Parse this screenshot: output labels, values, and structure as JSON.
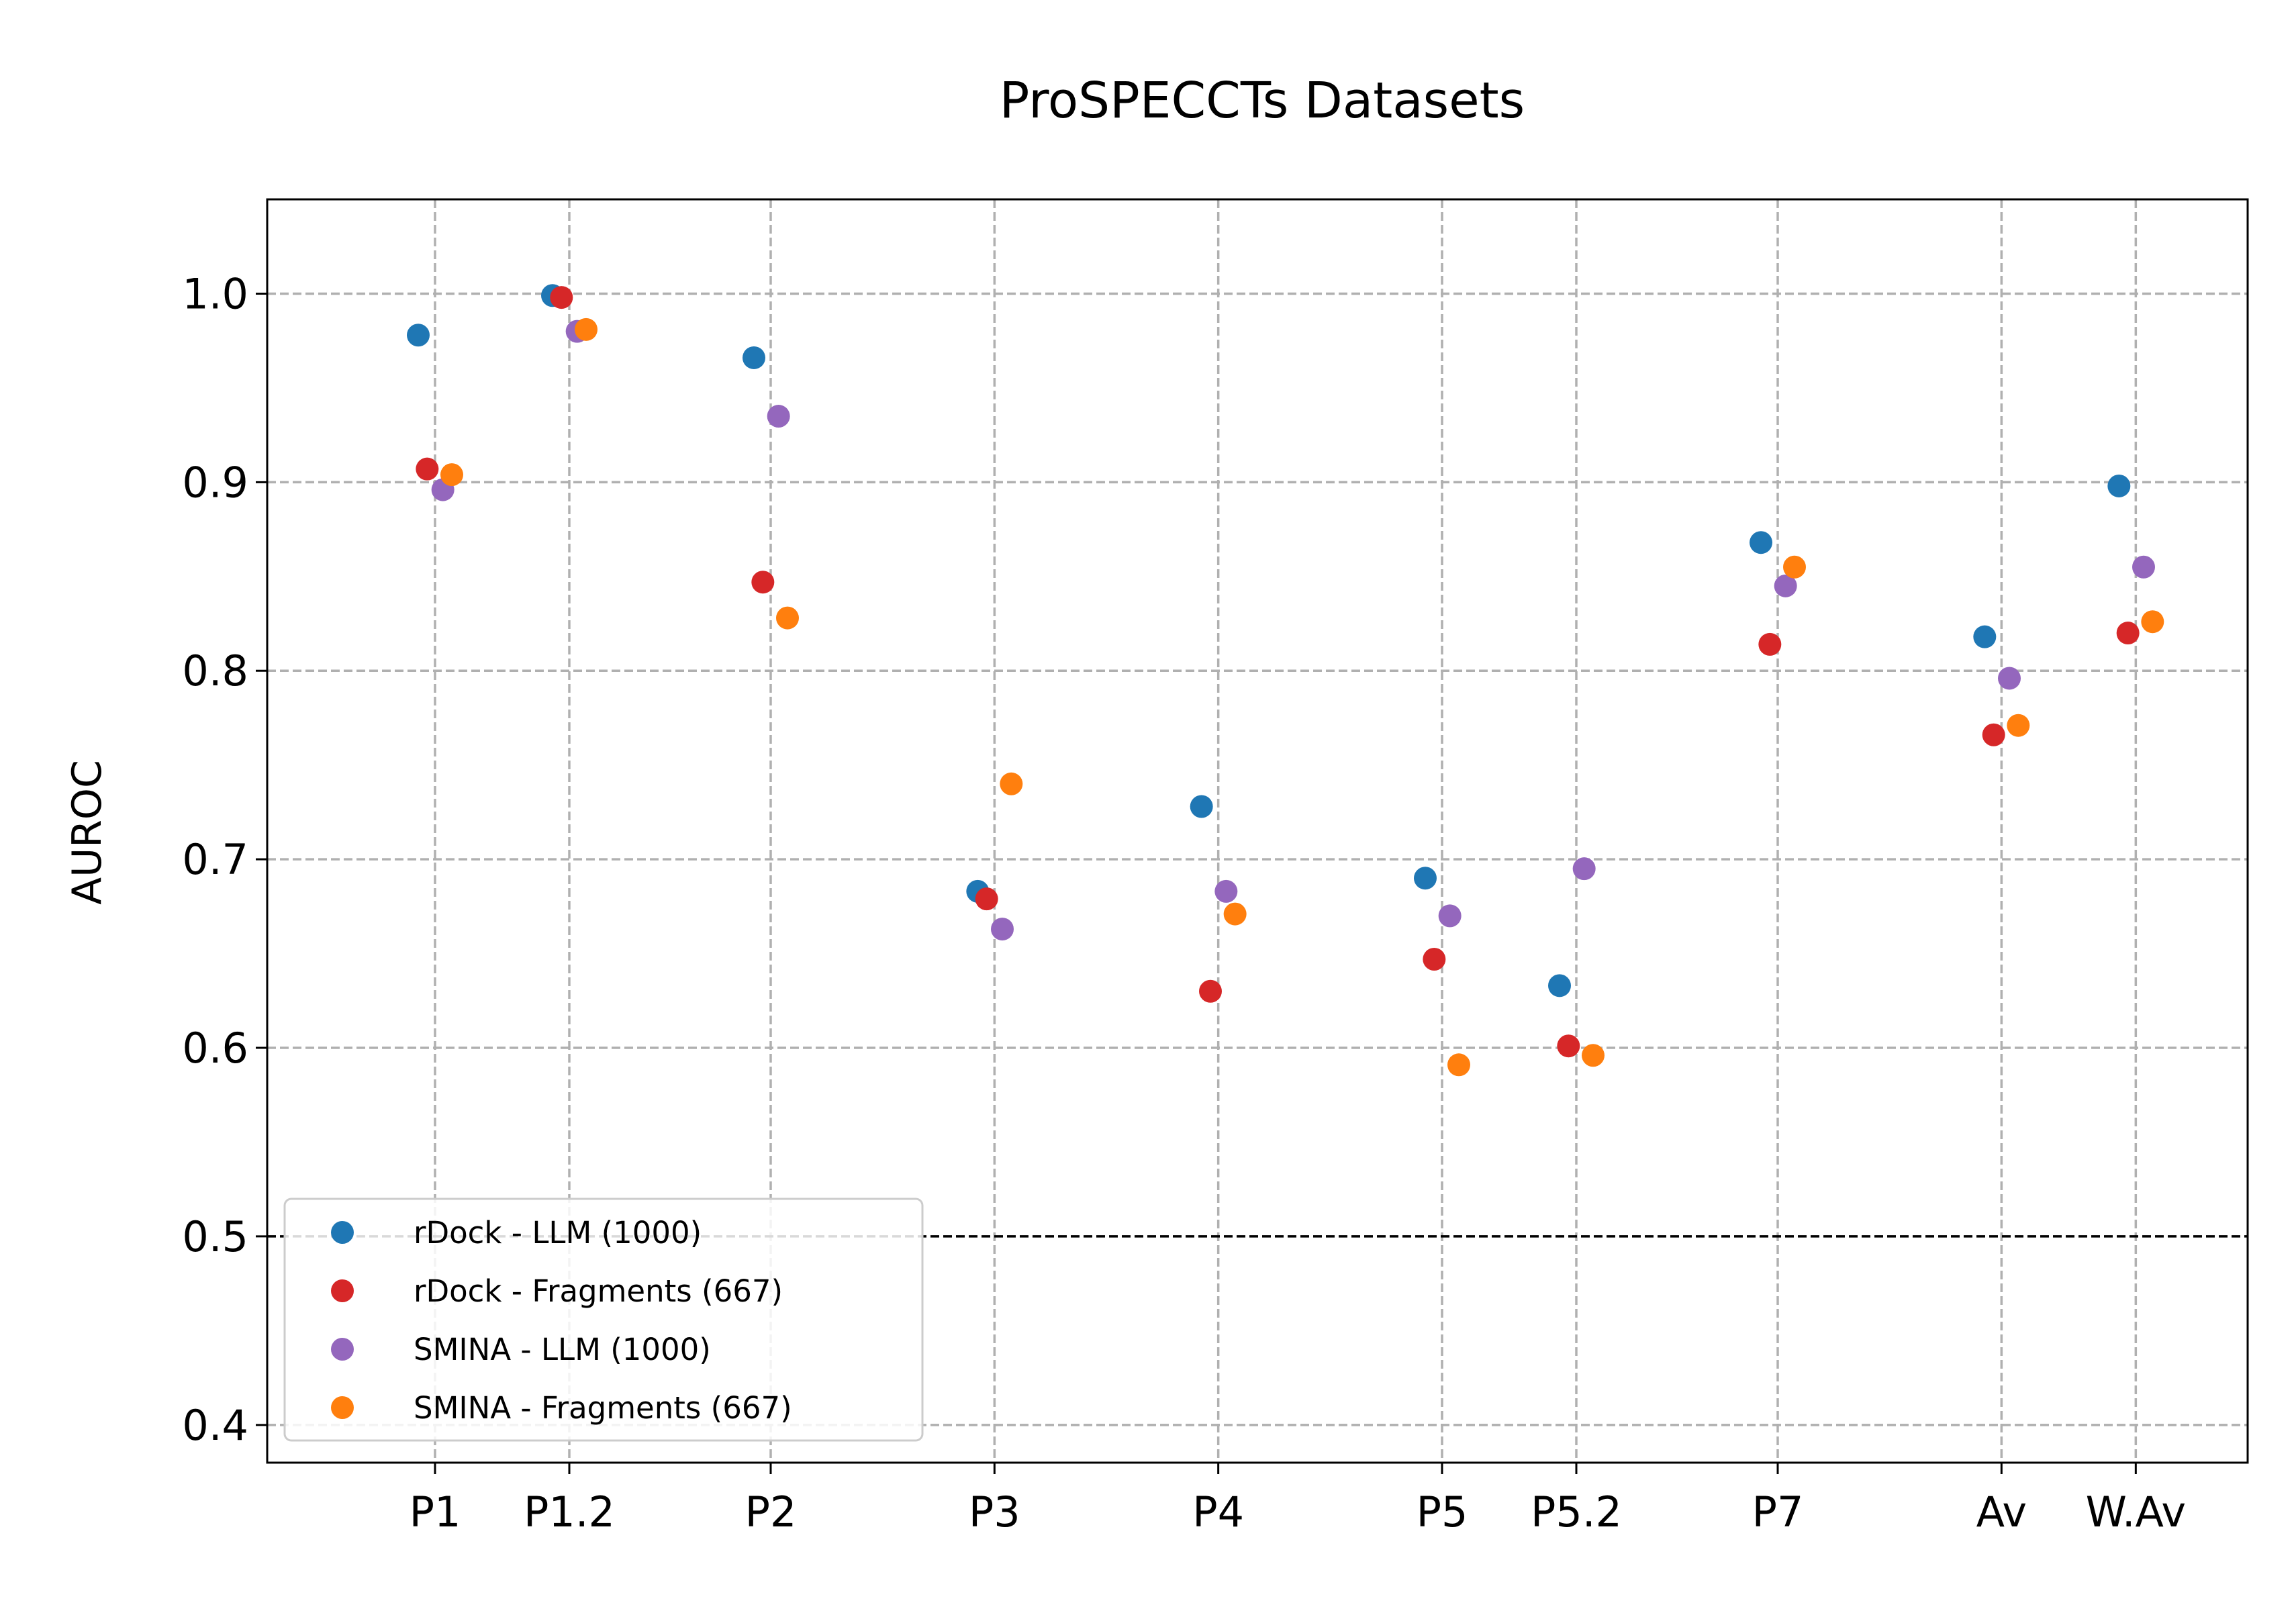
{
  "chart_data": {
    "type": "scatter",
    "title": "ProSPECCTs Datasets",
    "xlabel": "",
    "ylabel": "AUROC",
    "categories": [
      "P1",
      "P1.2",
      "P2",
      "P3",
      "P4",
      "P5",
      "P5.2",
      "P7",
      "Av",
      "W.Av"
    ],
    "category_positions": [
      1,
      1.6,
      2.5,
      3.5,
      4.5,
      5.5,
      6.1,
      7,
      8,
      8.6
    ],
    "xlim": [
      0.25,
      9.1
    ],
    "ylim": [
      0.38,
      1.05
    ],
    "yticks": [
      0.4,
      0.5,
      0.6,
      0.7,
      0.8,
      0.9,
      1.0
    ],
    "ytick_labels": [
      "0.4",
      "0.5",
      "0.6",
      "0.7",
      "0.8",
      "0.9",
      "1.0"
    ],
    "grid": true,
    "reference_line": 0.5,
    "legend_position": "lower-left",
    "series": [
      {
        "name": "rDock - LLM (1000)",
        "color": "#1f77b4",
        "offset": -0.075,
        "values": [
          0.978,
          0.999,
          0.966,
          0.683,
          0.728,
          0.69,
          0.633,
          0.868,
          0.818,
          0.898
        ]
      },
      {
        "name": "rDock - Fragments (667)",
        "color": "#d62728",
        "offset": -0.035,
        "values": [
          0.907,
          0.998,
          0.847,
          0.679,
          0.63,
          0.647,
          0.601,
          0.814,
          0.766,
          0.82
        ]
      },
      {
        "name": "SMINA - LLM (1000)",
        "color": "#9467bd",
        "offset": 0.035,
        "values": [
          0.896,
          0.98,
          0.935,
          0.663,
          0.683,
          0.67,
          0.695,
          0.845,
          0.796,
          0.855
        ]
      },
      {
        "name": "SMINA - Fragments (667)",
        "color": "#ff7f0e",
        "offset": 0.075,
        "values": [
          0.904,
          0.981,
          0.828,
          0.74,
          0.671,
          0.591,
          0.596,
          0.855,
          0.771,
          0.826
        ]
      }
    ]
  }
}
